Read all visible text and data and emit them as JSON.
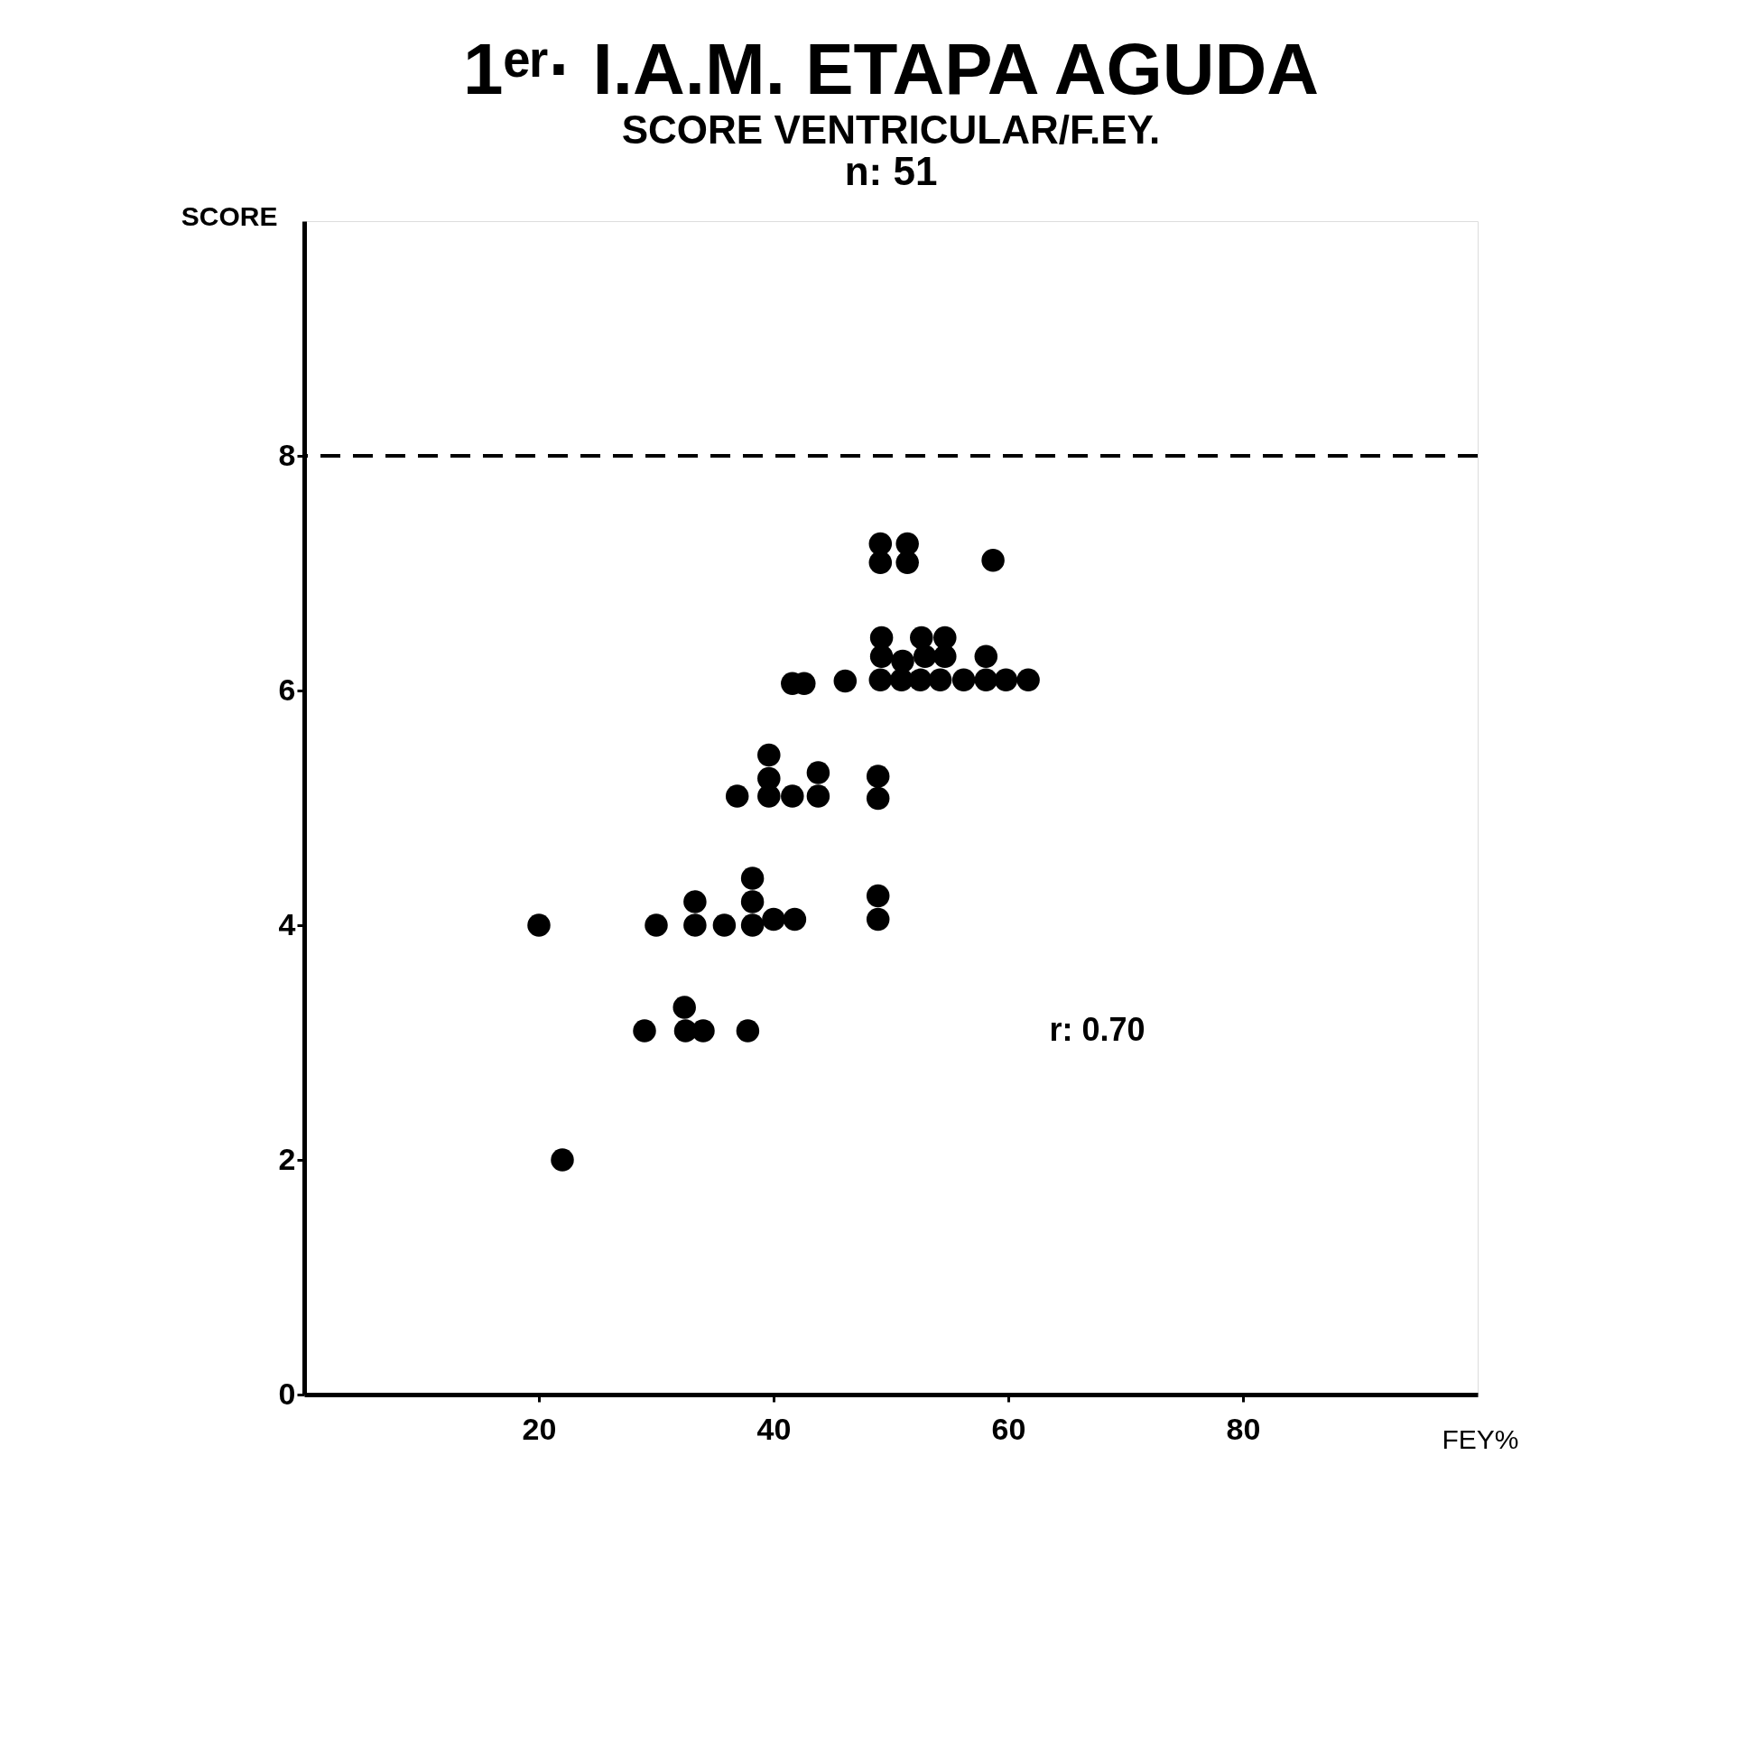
{
  "chart_data": {
    "type": "scatter",
    "title": "1ᵉʳ· I.A.M. ETAPA AGUDA",
    "subtitle": [
      "SCORE VENTRICULAR/F.EY.",
      "n: 51"
    ],
    "xlabel": "FEY%",
    "ylabel": "SCORE",
    "series": [
      {
        "color": "#000000",
        "x": [
          20,
          22,
          30,
          29,
          32.4,
          32.5,
          34,
          37.8,
          33.3,
          33.3,
          35.8,
          38.2,
          38.2,
          38.2,
          40,
          41.8,
          48.9,
          48.9,
          36.9,
          39.6,
          39.6,
          39.6,
          41.6,
          43.8,
          43.8,
          48.9,
          48.9,
          41.6,
          42.6,
          46.1,
          49.1,
          50.9,
          52.5,
          54.2,
          56.2,
          58.1,
          59.8,
          61.7,
          49.2,
          51,
          52.9,
          54.6,
          58.1,
          49.2,
          52.6,
          54.6,
          49.1,
          51.4,
          49.1,
          51.4,
          58.7
        ],
        "values": [
          4,
          2,
          4,
          3.1,
          3.3,
          3.1,
          3.1,
          3.1,
          4.2,
          4,
          4,
          4.4,
          4.2,
          4,
          4.05,
          4.05,
          4.25,
          4.05,
          5.1,
          5.45,
          5.25,
          5.1,
          5.1,
          5.3,
          5.1,
          5.27,
          5.08,
          6.06,
          6.06,
          6.08,
          6.09,
          6.09,
          6.09,
          6.09,
          6.09,
          6.09,
          6.09,
          6.09,
          6.29,
          6.25,
          6.29,
          6.29,
          6.29,
          6.45,
          6.45,
          6.45,
          7.09,
          7.09,
          7.25,
          7.25,
          7.11
        ]
      }
    ],
    "xlim": [
      0,
      100
    ],
    "ylim": [
      0,
      10
    ],
    "xticks": [
      20,
      40,
      60,
      80
    ],
    "yticks": [
      0,
      2,
      4,
      6,
      8
    ],
    "ref_lines": [
      {
        "axis": "y",
        "value": 8,
        "line_style": "dashed",
        "color": "#000000"
      }
    ],
    "annotations": [
      "r: 0.70"
    ],
    "grid": false,
    "marker": "circle"
  }
}
